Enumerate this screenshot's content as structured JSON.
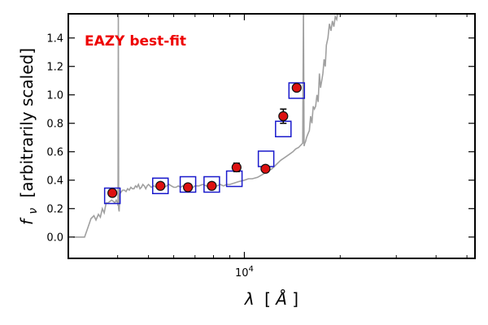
{
  "chart_data": {
    "type": "scatter",
    "title": "",
    "xlabel_parts": {
      "symbol": "λ",
      "bracket_open": "[",
      "unit": "Å",
      "bracket_close": "]"
    },
    "ylabel_parts": {
      "symbol": "f",
      "subscript": "ν",
      "text": "[arbitrarily scaled]"
    },
    "x_scale": "log",
    "xlim": [
      2800,
      53000
    ],
    "ylim": [
      -0.15,
      1.57
    ],
    "y_ticks": [
      0.0,
      0.2,
      0.4,
      0.6,
      0.8,
      1.0,
      1.2,
      1.4
    ],
    "y_tick_labels": [
      "0.0",
      "0.2",
      "0.4",
      "0.6",
      "0.8",
      "1.0",
      "1.2",
      "1.4"
    ],
    "x_major_tick": 10000,
    "x_major_tick_label": {
      "base": "10",
      "exponent": "4"
    },
    "x_minor_ticks": [
      4000,
      5000,
      6000,
      7000,
      8000,
      9000,
      20000,
      30000,
      40000,
      50000
    ],
    "grid": false,
    "annotation": {
      "text": "EAZY best-fit",
      "color": "#ee0000"
    },
    "colors": {
      "template": "#a0a0a0",
      "observed_face": "#dd1111",
      "observed_edge": "#111111",
      "model_box": "#1a1acc",
      "errorbar": "#000000"
    },
    "series": [
      {
        "kind": "template",
        "x": [
          2900,
          3050,
          3150,
          3230,
          3300,
          3370,
          3420,
          3480,
          3530,
          3580,
          3630,
          3680,
          3730,
          3780,
          3830,
          3880,
          3920,
          3960,
          4000,
          4010,
          4020,
          4030,
          4045,
          4060,
          4080,
          4110,
          4150,
          4200,
          4250,
          4300,
          4350,
          4400,
          4450,
          4500,
          4550,
          4600,
          4650,
          4700,
          4750,
          4800,
          4850,
          4900,
          4950,
          5000,
          5100,
          5200,
          5300,
          5400,
          5500,
          5600,
          5700,
          5800,
          5900,
          6000,
          6100,
          6200,
          6300,
          6400,
          6500,
          6600,
          6700,
          6800,
          6900,
          7000,
          7200,
          7400,
          7600,
          7800,
          8000,
          8200,
          8400,
          8600,
          8800,
          9000,
          9300,
          9600,
          10000,
          10300,
          10600,
          11000,
          11400,
          11800,
          12200,
          12600,
          13000,
          13400,
          13800,
          14200,
          14500,
          14800,
          15100,
          15250,
          15330,
          15400,
          15480,
          15560,
          15680,
          15800,
          16000,
          16150,
          16300,
          16450,
          16600,
          16750,
          16900,
          17050,
          17200,
          17350,
          17500,
          17650,
          17800,
          17950,
          18100,
          18300,
          18500,
          18700,
          18900,
          19100,
          19300,
          19500,
          19700,
          19800
        ],
        "y": [
          0.0,
          0.0,
          0.0,
          0.07,
          0.13,
          0.15,
          0.12,
          0.16,
          0.14,
          0.2,
          0.17,
          0.24,
          0.24,
          0.25,
          0.26,
          0.25,
          0.24,
          0.26,
          0.24,
          0.22,
          1.6,
          0.2,
          0.18,
          0.3,
          0.31,
          0.32,
          0.33,
          0.33,
          0.32,
          0.34,
          0.33,
          0.35,
          0.34,
          0.34,
          0.36,
          0.35,
          0.37,
          0.34,
          0.35,
          0.37,
          0.36,
          0.34,
          0.36,
          0.37,
          0.35,
          0.36,
          0.35,
          0.37,
          0.36,
          0.35,
          0.36,
          0.37,
          0.36,
          0.35,
          0.35,
          0.36,
          0.35,
          0.36,
          0.35,
          0.36,
          0.35,
          0.36,
          0.35,
          0.36,
          0.36,
          0.37,
          0.36,
          0.36,
          0.35,
          0.36,
          0.37,
          0.36,
          0.37,
          0.37,
          0.38,
          0.39,
          0.4,
          0.41,
          0.41,
          0.42,
          0.44,
          0.46,
          0.48,
          0.51,
          0.54,
          0.56,
          0.58,
          0.6,
          0.62,
          0.63,
          0.65,
          0.66,
          1.6,
          0.64,
          0.66,
          0.67,
          0.7,
          0.72,
          0.75,
          0.85,
          0.8,
          0.92,
          0.9,
          0.92,
          1.0,
          0.95,
          1.15,
          1.05,
          1.1,
          1.15,
          1.25,
          1.2,
          1.35,
          1.4,
          1.5,
          1.45,
          1.52,
          1.48,
          1.55,
          1.53,
          1.6,
          1.6
        ]
      },
      {
        "kind": "model",
        "x": [
          3850,
          5450,
          6650,
          7900,
          9300,
          11700,
          13250,
          14600
        ],
        "y": [
          0.29,
          0.36,
          0.37,
          0.37,
          0.41,
          0.55,
          0.76,
          1.03
        ]
      },
      {
        "kind": "observed",
        "x": [
          3850,
          5450,
          6650,
          7900,
          9450,
          11650,
          13250,
          14600
        ],
        "y": [
          0.31,
          0.36,
          0.35,
          0.36,
          0.49,
          0.48,
          0.85,
          1.05
        ],
        "yerr": [
          0.01,
          0.01,
          0.01,
          0.01,
          0.03,
          0.01,
          0.05,
          0.015
        ]
      }
    ]
  }
}
